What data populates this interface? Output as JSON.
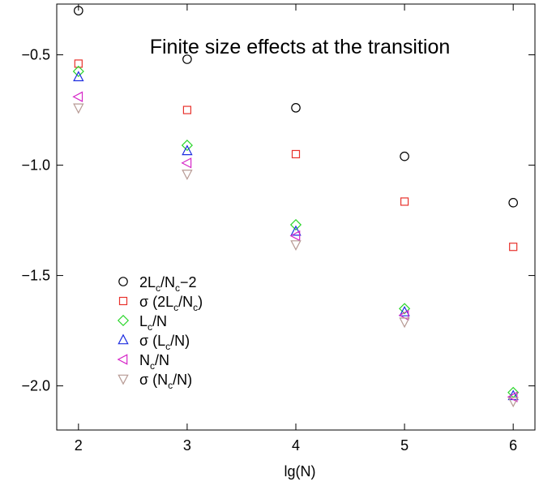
{
  "chart_data": {
    "type": "scatter",
    "title": "Finite size effects at the transition",
    "xlabel": "lg(N)",
    "ylabel": "",
    "xlim": [
      1.8,
      6.2
    ],
    "ylim": [
      -2.2,
      -0.27
    ],
    "xticks": [
      "2",
      "3",
      "4",
      "5",
      "6"
    ],
    "yticks": [
      "−0.5",
      "−1.0",
      "−1.5",
      "−2.0"
    ],
    "legend_position": "lower-left",
    "grid": false,
    "x": [
      2,
      3,
      4,
      5,
      6
    ],
    "series": [
      {
        "name": "2Lc/Nc−2",
        "label_parts": [
          {
            "t": "2L"
          },
          {
            "t": "c",
            "sub": true
          },
          {
            "t": "/N"
          },
          {
            "t": "c",
            "sub": true
          },
          {
            "t": "−2"
          }
        ],
        "marker": "circle",
        "color": "#000000",
        "values": [
          -0.3,
          -0.52,
          -0.74,
          -0.96,
          -1.17
        ]
      },
      {
        "name": "σ (2Lc/Nc)",
        "label_parts": [
          {
            "t": "σ (2L"
          },
          {
            "t": "c",
            "sub": true
          },
          {
            "t": "/N"
          },
          {
            "t": "c",
            "sub": true
          },
          {
            "t": ")"
          }
        ],
        "marker": "square",
        "color": "#e8322c",
        "values": [
          -0.54,
          -0.75,
          -0.95,
          -1.165,
          -1.37
        ]
      },
      {
        "name": "Lc/N",
        "label_parts": [
          {
            "t": "L"
          },
          {
            "t": "c",
            "sub": true
          },
          {
            "t": "/N"
          }
        ],
        "marker": "diamond",
        "color": "#2bd62b",
        "values": [
          -0.575,
          -0.91,
          -1.27,
          -1.65,
          -2.03
        ]
      },
      {
        "name": "σ (Lc/N)",
        "label_parts": [
          {
            "t": "σ (L"
          },
          {
            "t": "c",
            "sub": true
          },
          {
            "t": "/N)"
          }
        ],
        "marker": "triangle-up",
        "color": "#1e2ee0",
        "values": [
          -0.6,
          -0.935,
          -1.3,
          -1.665,
          -2.045
        ]
      },
      {
        "name": "Nc/N",
        "label_parts": [
          {
            "t": "N"
          },
          {
            "t": "c",
            "sub": true
          },
          {
            "t": "/N"
          }
        ],
        "marker": "triangle-left",
        "color": "#d628c8",
        "values": [
          -0.69,
          -0.99,
          -1.32,
          -1.68,
          -2.05
        ]
      },
      {
        "name": "σ (Nc/N)",
        "label_parts": [
          {
            "t": "σ (N"
          },
          {
            "t": "c",
            "sub": true
          },
          {
            "t": "/N)"
          }
        ],
        "marker": "triangle-down",
        "color": "#b79a94",
        "values": [
          -0.74,
          -1.04,
          -1.36,
          -1.71,
          -2.07
        ]
      }
    ]
  }
}
